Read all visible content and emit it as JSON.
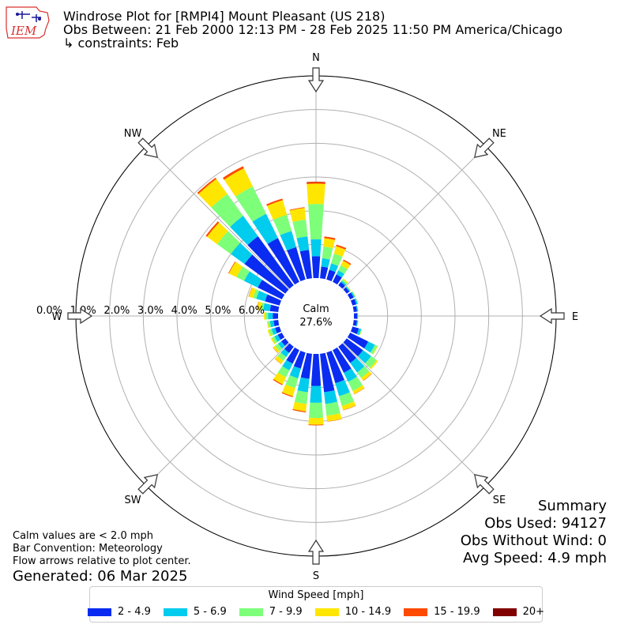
{
  "header": {
    "logo_text": "IEM",
    "title_line1": "Windrose Plot for [RMPI4] Mount Pleasant (US 218)",
    "title_line2": "Obs Between: 21 Feb 2000 12:13 PM - 28 Feb 2025 11:50 PM America/Chicago",
    "title_line3": "↳ constraints: Feb"
  },
  "summary": {
    "heading": "Summary",
    "obs_used": "Obs Used: 94127",
    "obs_without_wind": "Obs Without Wind: 0",
    "avg_speed": "Avg Speed: 4.9 mph"
  },
  "notes": {
    "calm_note": "Calm values are < 2.0 mph",
    "bar_convention": "Bar Convention: Meteorology",
    "flow_arrows": "Flow arrows relative to plot center.",
    "generated": "Generated: 06 Mar 2025"
  },
  "calm": {
    "label": "Calm",
    "value": "27.6%"
  },
  "chart_data": {
    "type": "windrose",
    "directions": [
      "N",
      "NE",
      "E",
      "SE",
      "S",
      "SW",
      "W",
      "NW"
    ],
    "radial_ticks": [
      "0.0%",
      "1.0%",
      "2.0%",
      "3.0%",
      "4.0%",
      "5.0%",
      "6.0%"
    ],
    "rmax": 6.0,
    "legend_title": "Wind Speed [mph]",
    "bins": [
      {
        "label": "2 - 4.9",
        "color": "#0a2cf0"
      },
      {
        "label": "5 - 6.9",
        "color": "#00ccee"
      },
      {
        "label": "7 - 9.9",
        "color": "#7dff7a"
      },
      {
        "label": "10 - 14.9",
        "color": "#ffe600"
      },
      {
        "label": "15 - 19.9",
        "color": "#ff4a00"
      },
      {
        "label": "20+",
        "color": "#800000"
      }
    ],
    "sectors": [
      {
        "dir": 0,
        "cumulative": [
          0.65,
          1.15,
          2.2,
          2.8,
          2.85,
          2.86
        ]
      },
      {
        "dir": 10,
        "cumulative": [
          0.35,
          0.6,
          0.95,
          1.2,
          1.25,
          1.25
        ]
      },
      {
        "dir": 20,
        "cumulative": [
          0.3,
          0.5,
          0.8,
          1.03,
          1.08,
          1.08
        ]
      },
      {
        "dir": 30,
        "cumulative": [
          0.25,
          0.38,
          0.55,
          0.7,
          0.74,
          0.74
        ]
      },
      {
        "dir": 40,
        "cumulative": [
          0.12,
          0.17,
          0.22,
          0.25,
          0.25,
          0.25
        ]
      },
      {
        "dir": 50,
        "cumulative": [
          0.1,
          0.13,
          0.15,
          0.16,
          0.16,
          0.16
        ]
      },
      {
        "dir": 60,
        "cumulative": [
          0.12,
          0.16,
          0.18,
          0.19,
          0.19,
          0.19
        ]
      },
      {
        "dir": 70,
        "cumulative": [
          0.12,
          0.16,
          0.18,
          0.18,
          0.18,
          0.18
        ]
      },
      {
        "dir": 80,
        "cumulative": [
          0.1,
          0.13,
          0.14,
          0.14,
          0.14,
          0.14
        ]
      },
      {
        "dir": 90,
        "cumulative": [
          0.1,
          0.12,
          0.13,
          0.13,
          0.13,
          0.13
        ]
      },
      {
        "dir": 100,
        "cumulative": [
          0.1,
          0.13,
          0.14,
          0.14,
          0.14,
          0.14
        ]
      },
      {
        "dir": 110,
        "cumulative": [
          0.2,
          0.27,
          0.29,
          0.3,
          0.3,
          0.3
        ]
      },
      {
        "dir": 120,
        "cumulative": [
          0.6,
          0.82,
          0.9,
          0.92,
          0.92,
          0.92
        ]
      },
      {
        "dir": 130,
        "cumulative": [
          0.6,
          0.9,
          1.1,
          1.15,
          1.15,
          1.15
        ]
      },
      {
        "dir": 140,
        "cumulative": [
          0.6,
          0.95,
          1.15,
          1.25,
          1.26,
          1.26
        ]
      },
      {
        "dir": 150,
        "cumulative": [
          0.75,
          1.05,
          1.35,
          1.45,
          1.46,
          1.46
        ]
      },
      {
        "dir": 160,
        "cumulative": [
          0.95,
          1.35,
          1.65,
          1.78,
          1.79,
          1.79
        ]
      },
      {
        "dir": 170,
        "cumulative": [
          1.15,
          1.5,
          1.85,
          2.02,
          2.03,
          2.03
        ]
      },
      {
        "dir": 180,
        "cumulative": [
          0.95,
          1.45,
          1.9,
          2.1,
          2.12,
          2.12
        ]
      },
      {
        "dir": 190,
        "cumulative": [
          0.75,
          1.15,
          1.5,
          1.72,
          1.75,
          1.75
        ]
      },
      {
        "dir": 200,
        "cumulative": [
          0.5,
          0.8,
          1.1,
          1.35,
          1.38,
          1.38
        ]
      },
      {
        "dir": 210,
        "cumulative": [
          0.45,
          0.67,
          0.9,
          1.13,
          1.16,
          1.16
        ]
      },
      {
        "dir": 220,
        "cumulative": [
          0.23,
          0.38,
          0.52,
          0.63,
          0.64,
          0.64
        ]
      },
      {
        "dir": 230,
        "cumulative": [
          0.15,
          0.27,
          0.38,
          0.45,
          0.46,
          0.46
        ]
      },
      {
        "dir": 240,
        "cumulative": [
          0.14,
          0.25,
          0.33,
          0.37,
          0.37,
          0.37
        ]
      },
      {
        "dir": 250,
        "cumulative": [
          0.14,
          0.25,
          0.33,
          0.37,
          0.37,
          0.37
        ]
      },
      {
        "dir": 260,
        "cumulative": [
          0.14,
          0.25,
          0.31,
          0.34,
          0.34,
          0.34
        ]
      },
      {
        "dir": 270,
        "cumulative": [
          0.16,
          0.3,
          0.38,
          0.42,
          0.42,
          0.42
        ]
      },
      {
        "dir": 280,
        "cumulative": [
          0.25,
          0.45,
          0.52,
          0.63,
          0.64,
          0.64
        ]
      },
      {
        "dir": 290,
        "cumulative": [
          0.45,
          0.72,
          0.82,
          0.95,
          0.96,
          0.96
        ]
      },
      {
        "dir": 300,
        "cumulative": [
          0.8,
          1.25,
          1.5,
          1.75,
          1.77,
          1.77
        ]
      },
      {
        "dir": 310,
        "cumulative": [
          1.5,
          2.0,
          2.5,
          2.87,
          2.92,
          2.92
        ]
      },
      {
        "dir": 320,
        "cumulative": [
          1.8,
          2.55,
          3.35,
          3.9,
          3.95,
          3.95
        ]
      },
      {
        "dir": 330,
        "cumulative": [
          1.45,
          2.25,
          3.15,
          3.75,
          3.82,
          3.82
        ]
      },
      {
        "dir": 340,
        "cumulative": [
          1.0,
          1.5,
          2.0,
          2.45,
          2.5,
          2.5
        ]
      },
      {
        "dir": 350,
        "cumulative": [
          0.85,
          1.25,
          1.75,
          2.1,
          2.12,
          2.12
        ]
      }
    ]
  }
}
